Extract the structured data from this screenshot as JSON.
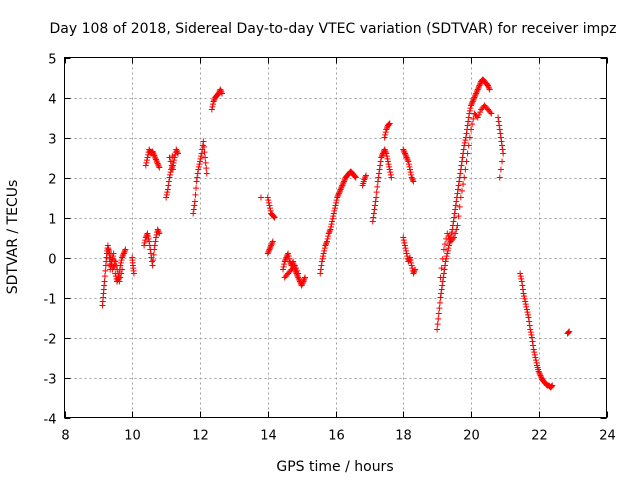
{
  "chart_data": {
    "type": "scatter",
    "title": "Day 108 of 2018, Sidereal Day-to-day VTEC variation (SDTVAR) for receiver impz",
    "xlabel": "GPS time / hours",
    "ylabel": "SDTVAR / TECUs",
    "xlim": [
      8,
      24
    ],
    "ylim": [
      -4,
      5
    ],
    "xticks": [
      8,
      10,
      12,
      14,
      16,
      18,
      20,
      22,
      24
    ],
    "yticks": [
      -4,
      -3,
      -2,
      -1,
      0,
      1,
      2,
      3,
      4,
      5
    ],
    "grid": true,
    "marker": "+",
    "color": "#ff0000",
    "segments": [
      [
        [
          9.12,
          -1.2
        ],
        [
          9.15,
          -0.9
        ],
        [
          9.18,
          -0.6
        ],
        [
          9.22,
          -0.2
        ],
        [
          9.25,
          0.1
        ],
        [
          9.28,
          0.3
        ],
        [
          9.32,
          0.1
        ],
        [
          9.35,
          -0.3
        ],
        [
          9.4,
          -0.1
        ],
        [
          9.45,
          0.1
        ],
        [
          9.5,
          -0.4
        ],
        [
          9.55,
          -0.6
        ],
        [
          9.6,
          -0.5
        ],
        [
          9.65,
          -0.2
        ],
        [
          9.7,
          0.0
        ],
        [
          9.75,
          0.1
        ],
        [
          9.8,
          0.2
        ]
      ],
      [
        [
          9.3,
          0.2
        ],
        [
          9.35,
          0.0
        ],
        [
          9.42,
          -0.3
        ],
        [
          9.5,
          -0.1
        ],
        [
          9.58,
          -0.4
        ],
        [
          9.62,
          -0.6
        ],
        [
          9.7,
          -0.3
        ]
      ],
      [
        [
          10.0,
          0.0
        ],
        [
          10.02,
          -0.2
        ],
        [
          10.05,
          -0.4
        ]
      ],
      [
        [
          10.35,
          0.3
        ],
        [
          10.4,
          0.5
        ],
        [
          10.45,
          0.6
        ],
        [
          10.5,
          0.4
        ],
        [
          10.55,
          0.1
        ],
        [
          10.6,
          -0.2
        ],
        [
          10.65,
          0.2
        ],
        [
          10.7,
          0.5
        ],
        [
          10.75,
          0.7
        ],
        [
          10.8,
          0.6
        ]
      ],
      [
        [
          10.4,
          2.3
        ],
        [
          10.45,
          2.5
        ],
        [
          10.5,
          2.7
        ],
        [
          10.55,
          2.6
        ],
        [
          10.6,
          2.65
        ],
        [
          10.65,
          2.55
        ],
        [
          10.7,
          2.45
        ],
        [
          10.75,
          2.35
        ],
        [
          10.8,
          2.25
        ]
      ],
      [
        [
          11.0,
          1.5
        ],
        [
          11.05,
          1.7
        ],
        [
          11.1,
          2.0
        ],
        [
          11.15,
          2.2
        ],
        [
          11.2,
          2.3
        ],
        [
          11.25,
          2.5
        ],
        [
          11.3,
          2.7
        ],
        [
          11.35,
          2.6
        ],
        [
          11.1,
          2.5
        ],
        [
          11.2,
          2.2
        ]
      ],
      [
        [
          11.8,
          1.1
        ],
        [
          11.85,
          1.4
        ],
        [
          11.9,
          1.9
        ],
        [
          11.95,
          2.2
        ],
        [
          12.0,
          2.4
        ],
        [
          12.05,
          2.6
        ],
        [
          12.1,
          2.9
        ],
        [
          12.15,
          2.5
        ],
        [
          12.2,
          2.1
        ]
      ],
      [
        [
          12.35,
          3.7
        ],
        [
          12.4,
          3.9
        ],
        [
          12.45,
          4.0
        ],
        [
          12.5,
          4.05
        ],
        [
          12.55,
          4.1
        ],
        [
          12.6,
          4.2
        ],
        [
          12.65,
          4.1
        ]
      ],
      [
        [
          13.8,
          1.5
        ]
      ],
      [
        [
          14.0,
          1.5
        ],
        [
          14.05,
          1.3
        ],
        [
          14.1,
          1.1
        ],
        [
          14.15,
          1.05
        ],
        [
          14.2,
          1.0
        ]
      ],
      [
        [
          14.0,
          0.1
        ],
        [
          14.05,
          0.2
        ],
        [
          14.1,
          0.3
        ],
        [
          14.15,
          0.4
        ]
      ],
      [
        [
          14.45,
          -0.3
        ],
        [
          14.5,
          -0.1
        ],
        [
          14.55,
          0.0
        ],
        [
          14.6,
          0.1
        ],
        [
          14.65,
          -0.1
        ],
        [
          14.7,
          -0.2
        ],
        [
          14.75,
          -0.1
        ],
        [
          14.8,
          -0.3
        ],
        [
          14.85,
          -0.4
        ],
        [
          14.9,
          -0.5
        ],
        [
          14.95,
          -0.6
        ],
        [
          15.0,
          -0.7
        ],
        [
          15.05,
          -0.6
        ],
        [
          15.1,
          -0.5
        ]
      ],
      [
        [
          14.5,
          -0.5
        ],
        [
          14.6,
          -0.4
        ],
        [
          14.7,
          -0.3
        ],
        [
          14.8,
          -0.2
        ],
        [
          14.9,
          -0.4
        ]
      ],
      [
        [
          15.55,
          -0.4
        ],
        [
          15.6,
          -0.1
        ],
        [
          15.65,
          0.1
        ],
        [
          15.7,
          0.3
        ],
        [
          15.75,
          0.4
        ],
        [
          15.8,
          0.6
        ],
        [
          15.85,
          0.7
        ],
        [
          15.9,
          0.9
        ],
        [
          15.95,
          1.1
        ],
        [
          16.0,
          1.3
        ],
        [
          16.05,
          1.5
        ],
        [
          16.1,
          1.6
        ],
        [
          16.15,
          1.7
        ],
        [
          16.2,
          1.8
        ],
        [
          16.25,
          1.9
        ],
        [
          16.3,
          2.0
        ],
        [
          16.35,
          2.05
        ],
        [
          16.4,
          2.1
        ],
        [
          16.45,
          2.15
        ],
        [
          16.5,
          2.1
        ],
        [
          16.55,
          2.05
        ],
        [
          16.6,
          2.0
        ]
      ],
      [
        [
          16.8,
          1.8
        ],
        [
          16.85,
          1.95
        ],
        [
          16.9,
          2.05
        ]
      ],
      [
        [
          17.1,
          0.9
        ],
        [
          17.15,
          1.2
        ],
        [
          17.2,
          1.5
        ],
        [
          17.25,
          1.9
        ],
        [
          17.3,
          2.2
        ],
        [
          17.35,
          2.5
        ],
        [
          17.4,
          2.6
        ],
        [
          17.45,
          2.7
        ],
        [
          17.5,
          2.6
        ],
        [
          17.55,
          2.4
        ],
        [
          17.6,
          2.2
        ],
        [
          17.65,
          2.0
        ]
      ],
      [
        [
          17.45,
          3.0
        ],
        [
          17.5,
          3.2
        ],
        [
          17.55,
          3.3
        ],
        [
          17.6,
          3.35
        ]
      ],
      [
        [
          18.0,
          2.7
        ],
        [
          18.05,
          2.6
        ],
        [
          18.1,
          2.5
        ],
        [
          18.15,
          2.4
        ],
        [
          18.2,
          2.2
        ],
        [
          18.25,
          2.0
        ],
        [
          18.3,
          1.9
        ]
      ],
      [
        [
          18.0,
          0.5
        ],
        [
          18.05,
          0.3
        ],
        [
          18.1,
          0.1
        ],
        [
          18.15,
          -0.1
        ],
        [
          18.2,
          0.0
        ],
        [
          18.25,
          -0.2
        ],
        [
          18.3,
          -0.4
        ],
        [
          18.35,
          -0.3
        ]
      ],
      [
        [
          19.0,
          -1.8
        ],
        [
          19.05,
          -1.4
        ],
        [
          19.1,
          -1.0
        ],
        [
          19.15,
          -0.7
        ],
        [
          19.2,
          -0.4
        ],
        [
          19.25,
          -0.1
        ],
        [
          19.3,
          0.1
        ],
        [
          19.35,
          0.3
        ],
        [
          19.4,
          0.5
        ],
        [
          19.45,
          0.7
        ],
        [
          19.5,
          1.0
        ],
        [
          19.55,
          1.3
        ],
        [
          19.6,
          1.6
        ],
        [
          19.65,
          1.9
        ],
        [
          19.7,
          2.2
        ],
        [
          19.75,
          2.5
        ],
        [
          19.8,
          2.8
        ],
        [
          19.85,
          3.0
        ],
        [
          19.9,
          3.3
        ],
        [
          19.95,
          3.6
        ],
        [
          20.0,
          3.8
        ],
        [
          20.05,
          3.9
        ],
        [
          20.1,
          4.0
        ],
        [
          20.15,
          4.1
        ],
        [
          20.2,
          4.2
        ],
        [
          20.25,
          4.3
        ],
        [
          20.3,
          4.4
        ],
        [
          20.35,
          4.45
        ],
        [
          20.4,
          4.4
        ],
        [
          20.45,
          4.35
        ],
        [
          20.5,
          4.3
        ],
        [
          20.55,
          4.2
        ]
      ],
      [
        [
          19.1,
          -0.5
        ],
        [
          19.2,
          0.2
        ],
        [
          19.3,
          0.6
        ],
        [
          19.4,
          0.4
        ],
        [
          19.5,
          0.5
        ],
        [
          19.6,
          0.8
        ],
        [
          19.7,
          1.5
        ],
        [
          19.8,
          2.0
        ],
        [
          19.9,
          2.6
        ],
        [
          20.0,
          3.2
        ],
        [
          20.1,
          3.6
        ],
        [
          20.2,
          3.5
        ],
        [
          20.3,
          3.7
        ],
        [
          20.4,
          3.8
        ],
        [
          20.5,
          3.7
        ],
        [
          20.6,
          3.6
        ]
      ],
      [
        [
          20.8,
          3.5
        ],
        [
          20.85,
          3.2
        ],
        [
          20.9,
          2.9
        ],
        [
          20.95,
          2.6
        ],
        [
          20.85,
          2.0
        ]
      ],
      [
        [
          21.45,
          -0.4
        ],
        [
          21.5,
          -0.6
        ],
        [
          21.55,
          -0.9
        ],
        [
          21.6,
          -1.1
        ],
        [
          21.65,
          -1.3
        ],
        [
          21.7,
          -1.5
        ],
        [
          21.75,
          -1.8
        ],
        [
          21.8,
          -2.0
        ],
        [
          21.85,
          -2.3
        ],
        [
          21.9,
          -2.5
        ],
        [
          21.95,
          -2.7
        ],
        [
          22.0,
          -2.85
        ],
        [
          22.05,
          -2.95
        ],
        [
          22.1,
          -3.05
        ],
        [
          22.15,
          -3.1
        ],
        [
          22.2,
          -3.15
        ],
        [
          22.25,
          -3.2
        ],
        [
          22.3,
          -3.2
        ],
        [
          22.35,
          -3.25
        ],
        [
          22.4,
          -3.2
        ]
      ],
      [
        [
          22.85,
          -1.9
        ],
        [
          22.9,
          -1.85
        ]
      ]
    ]
  }
}
